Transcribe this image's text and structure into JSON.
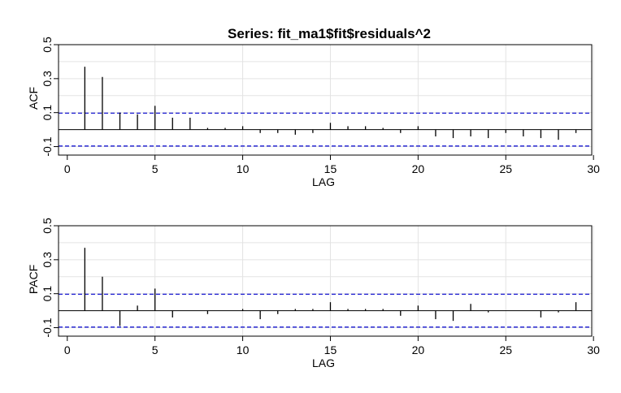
{
  "title": "Series:  fit_ma1$fit$residuals^2",
  "colors": {
    "confidence_band": "#0000cc",
    "grid": "#e3e3e3",
    "bars": "#000000"
  },
  "chart_data": [
    {
      "type": "bar",
      "name": "acf",
      "xlabel": "LAG",
      "ylabel": "ACF",
      "xlim": [
        0,
        30
      ],
      "ylim": [
        -0.15,
        0.5
      ],
      "xticks": [
        0,
        5,
        10,
        15,
        20,
        25,
        30
      ],
      "yticks": [
        -0.1,
        0.1,
        0.3,
        0.5
      ],
      "ytick_labels": [
        "-0.1",
        "0.1",
        "0.3",
        "0.5"
      ],
      "confidence_bounds": [
        0.097,
        -0.097
      ],
      "zero_line": true,
      "grid": true,
      "lags": [
        1,
        2,
        3,
        4,
        5,
        6,
        7,
        8,
        9,
        10,
        11,
        12,
        13,
        14,
        15,
        16,
        17,
        18,
        19,
        20,
        21,
        22,
        23,
        24,
        25,
        26,
        27,
        28,
        29
      ],
      "values": [
        0.37,
        0.31,
        0.1,
        0.09,
        0.14,
        0.07,
        0.07,
        0.01,
        0.01,
        0.02,
        -0.02,
        -0.02,
        -0.03,
        -0.02,
        0.04,
        0.02,
        0.02,
        0.01,
        -0.02,
        0.02,
        -0.04,
        -0.05,
        -0.04,
        -0.05,
        -0.02,
        -0.04,
        -0.05,
        -0.06,
        -0.02
      ]
    },
    {
      "type": "bar",
      "name": "pacf",
      "xlabel": "LAG",
      "ylabel": "PACF",
      "xlim": [
        0,
        30
      ],
      "ylim": [
        -0.15,
        0.5
      ],
      "xticks": [
        0,
        5,
        10,
        15,
        20,
        25,
        30
      ],
      "yticks": [
        -0.1,
        0.1,
        0.3,
        0.5
      ],
      "ytick_labels": [
        "-0.1",
        "0.1",
        "0.3",
        "0.5"
      ],
      "confidence_bounds": [
        0.097,
        -0.097
      ],
      "zero_line": true,
      "grid": true,
      "lags": [
        1,
        2,
        3,
        4,
        5,
        6,
        7,
        8,
        9,
        10,
        11,
        12,
        13,
        14,
        15,
        16,
        17,
        18,
        19,
        20,
        21,
        22,
        23,
        24,
        25,
        26,
        27,
        28,
        29
      ],
      "values": [
        0.37,
        0.2,
        -0.09,
        0.03,
        0.13,
        -0.04,
        0.0,
        -0.02,
        0.0,
        0.01,
        -0.05,
        -0.02,
        0.01,
        0.01,
        0.05,
        0.01,
        0.01,
        0.01,
        -0.03,
        0.03,
        -0.05,
        -0.06,
        0.04,
        -0.01,
        0.0,
        0.0,
        -0.04,
        -0.01,
        0.05
      ]
    }
  ]
}
